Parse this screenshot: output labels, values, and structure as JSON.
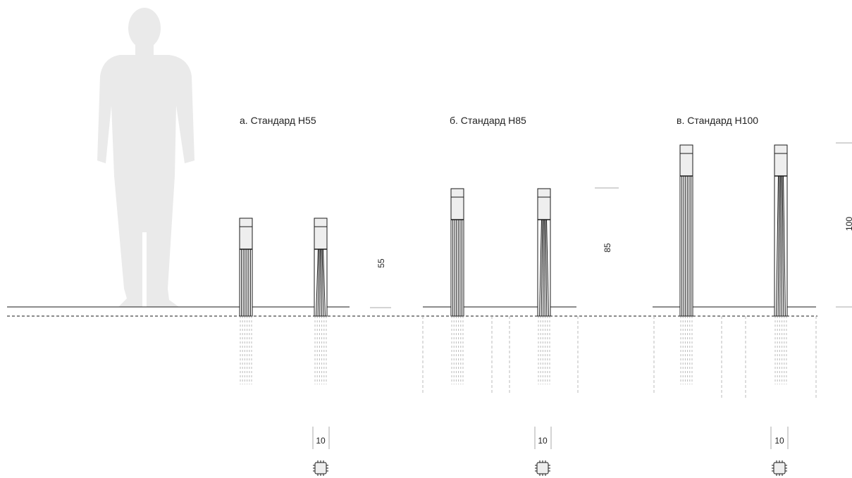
{
  "groups": [
    {
      "title": "а. Стандард Н55",
      "height_value": "55",
      "base_width_value": "10",
      "base_shape": "square-base-icon"
    },
    {
      "title": "б. Стандард Н85",
      "height_value": "85",
      "base_width_value": "10",
      "base_shape": "square-base-icon"
    },
    {
      "title": "в. Стандард Н100",
      "height_value": "100",
      "base_width_value": "10",
      "base_shape": "square-base-icon"
    }
  ],
  "silhouette": "human-silhouette-icon",
  "colors": {
    "ink": "#1a1a1a",
    "silhouette": "#eaeaea",
    "lamp_head": "#eeeeee",
    "dashed": "#bbbbbb",
    "tick": "#aaaaaa"
  }
}
